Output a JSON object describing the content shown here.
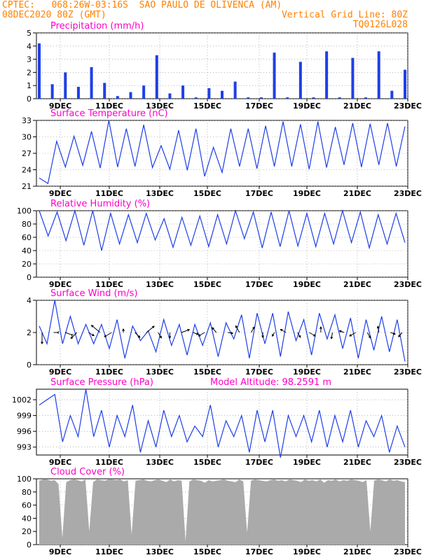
{
  "header": {
    "line1_left": "CPTEC:   068:26W-03:16S  SAO PAULO DE OLIVENCA (AM)",
    "line2_left": "08DEC2020 80Z (GMT)",
    "line2_right": "Vertical Grid Line: 80Z",
    "line3_right": "TQ0126L028"
  },
  "colors": {
    "header": "#ff8000",
    "title": "#ff00c8",
    "series": "#1f3fe6",
    "cloud": "#aaaaaa",
    "axis": "#000000",
    "grid": "#888888"
  },
  "x_ticks": [
    "9DEC",
    "11DEC",
    "13DEC",
    "15DEC",
    "17DEC",
    "19DEC",
    "21DEC",
    "23DEC"
  ],
  "chart_data": [
    {
      "id": "precip",
      "type": "bar",
      "title": "Precipitation (mm/h)",
      "ylim": [
        0,
        5
      ],
      "yticks": [
        0,
        1,
        2,
        3,
        4,
        5
      ],
      "x": [
        "09DEC00",
        "09DEC12",
        "10DEC00",
        "10DEC12",
        "11DEC00",
        "11DEC12",
        "12DEC00",
        "12DEC12",
        "13DEC00",
        "13DEC12",
        "14DEC00",
        "14DEC12",
        "15DEC00",
        "15DEC12",
        "16DEC00",
        "16DEC12",
        "17DEC00",
        "17DEC12",
        "18DEC00",
        "18DEC12",
        "19DEC00",
        "19DEC12",
        "20DEC00",
        "20DEC12",
        "21DEC00",
        "21DEC12",
        "22DEC00",
        "22DEC12",
        "23DEC00"
      ],
      "values": [
        4.2,
        1.1,
        2.0,
        0.9,
        2.4,
        1.2,
        0.2,
        0.5,
        1.0,
        3.3,
        0.4,
        1.0,
        0.1,
        0.8,
        0.6,
        1.3,
        0.1,
        0.1,
        3.5,
        0.1,
        2.8,
        0.1,
        3.6,
        0.1,
        3.1,
        0.1,
        3.6,
        0.6,
        2.2
      ]
    },
    {
      "id": "temp",
      "type": "line",
      "title": "Surface Temperature (nC)",
      "ylim": [
        21,
        33
      ],
      "yticks": [
        21,
        24,
        27,
        30,
        33
      ],
      "values": [
        22.5,
        21.5,
        29.2,
        24.5,
        30.1,
        24.8,
        31.0,
        24.3,
        33.0,
        24.5,
        31.5,
        24.6,
        32.2,
        24.4,
        28.4,
        24.1,
        31.2,
        23.9,
        31.5,
        22.8,
        28.1,
        23.5,
        31.5,
        24.6,
        31.5,
        24.2,
        32.0,
        24.6,
        32.8,
        24.6,
        32.3,
        24.1,
        32.8,
        24.4,
        31.8,
        24.9,
        32.5,
        24.5,
        32.4,
        24.9,
        32.5,
        24.6,
        31.9
      ]
    },
    {
      "id": "rh",
      "type": "line",
      "title": "Relative Humidity (%)",
      "ylim": [
        0,
        100
      ],
      "yticks": [
        0,
        20,
        40,
        60,
        80,
        100
      ],
      "values": [
        100,
        62,
        98,
        55,
        100,
        48,
        100,
        40,
        96,
        50,
        94,
        52,
        96,
        56,
        88,
        45,
        90,
        48,
        92,
        46,
        94,
        50,
        100,
        58,
        98,
        44,
        98,
        46,
        100,
        47,
        96,
        46,
        96,
        50,
        100,
        52,
        98,
        44,
        94,
        50,
        96,
        52
      ]
    },
    {
      "id": "wind",
      "type": "line",
      "title": "Surface Wind (m/s)",
      "ylim": [
        0,
        4
      ],
      "yticks": [
        0,
        2,
        4
      ],
      "values": [
        2.4,
        1.3,
        4.0,
        1.3,
        3.0,
        1.3,
        2.5,
        1.3,
        2.5,
        1.0,
        2.8,
        0.4,
        2.4,
        1.5,
        2.1,
        0.8,
        2.8,
        1.2,
        2.5,
        0.6,
        2.5,
        1.2,
        2.6,
        0.5,
        2.6,
        1.6,
        3.1,
        0.4,
        3.2,
        1.3,
        3.2,
        0.5,
        3.3,
        1.5,
        2.8,
        0.6,
        3.2,
        1.6,
        3.1,
        1.0,
        2.9,
        0.4,
        2.8,
        0.9,
        3.0,
        0.8,
        2.8,
        0.2
      ],
      "arrows": [
        [
          90,
          1.6
        ],
        [
          180,
          -0.5
        ],
        [
          200,
          -0.9
        ],
        [
          135,
          1.2
        ],
        [
          30,
          0.9
        ],
        [
          220,
          1.6
        ],
        [
          150,
          1.2
        ],
        [
          270,
          0.5
        ],
        [
          45,
          1.0
        ],
        [
          320,
          1.4
        ],
        [
          60,
          0.9
        ],
        [
          90,
          0.8
        ],
        [
          340,
          1.2
        ],
        [
          20,
          0.8
        ],
        [
          150,
          1.0
        ],
        [
          230,
          0.9
        ],
        [
          10,
          0.7
        ],
        [
          240,
          1.1
        ],
        [
          300,
          0.9
        ],
        [
          90,
          0.7
        ],
        [
          120,
          0.6
        ],
        [
          210,
          0.9
        ],
        [
          60,
          0.8
        ],
        [
          30,
          1.0
        ],
        [
          270,
          0.8
        ],
        [
          100,
          0.9
        ],
        [
          200,
          0.7
        ],
        [
          150,
          1.0
        ],
        [
          60,
          0.9
        ],
        [
          260,
          0.9
        ],
        [
          20,
          0.7
        ],
        [
          130,
          0.8
        ]
      ]
    },
    {
      "id": "pres",
      "type": "line",
      "title": "Surface Pressure (hPa)",
      "subtitle": "Model Altitude: 98.2591 m",
      "ylim": [
        991.5,
        1004
      ],
      "yticks": [
        993,
        996,
        999,
        1002
      ],
      "values": [
        1001,
        1002,
        1003,
        994,
        999,
        995,
        1004,
        995,
        1000,
        993,
        999,
        995,
        1001,
        992,
        998,
        993,
        1000,
        995,
        999,
        994,
        997,
        995,
        1001,
        993,
        998,
        995,
        999,
        992,
        1000,
        994,
        1000,
        991,
        999,
        995,
        999,
        994,
        1000,
        993,
        999,
        994,
        1000,
        993,
        998,
        995,
        999,
        992,
        997,
        993
      ]
    },
    {
      "id": "cloud",
      "type": "area",
      "title": "Cloud Cover (%)",
      "ylim": [
        0,
        100
      ],
      "yticks": [
        0,
        20,
        40,
        60,
        80,
        100
      ],
      "values": [
        97,
        99,
        99,
        97,
        98,
        92,
        10,
        95,
        98,
        99,
        98,
        96,
        99,
        20,
        95,
        99,
        98,
        97,
        99,
        99,
        98,
        99,
        96,
        98,
        15,
        97,
        98,
        99,
        97,
        96,
        98,
        99,
        97,
        95,
        99,
        96,
        98,
        97,
        5,
        96,
        99,
        98,
        97,
        94,
        98,
        96,
        97,
        98,
        99,
        97,
        96,
        95,
        99,
        96,
        18,
        97,
        99,
        98,
        97,
        96,
        98,
        99,
        97,
        98,
        96,
        99,
        98,
        97,
        95,
        99,
        97,
        98,
        96,
        99,
        94,
        98,
        97,
        99,
        96,
        98,
        97,
        99,
        98,
        97,
        95,
        98,
        20,
        97,
        99,
        98,
        96,
        99,
        97,
        98,
        96,
        95
      ]
    }
  ]
}
